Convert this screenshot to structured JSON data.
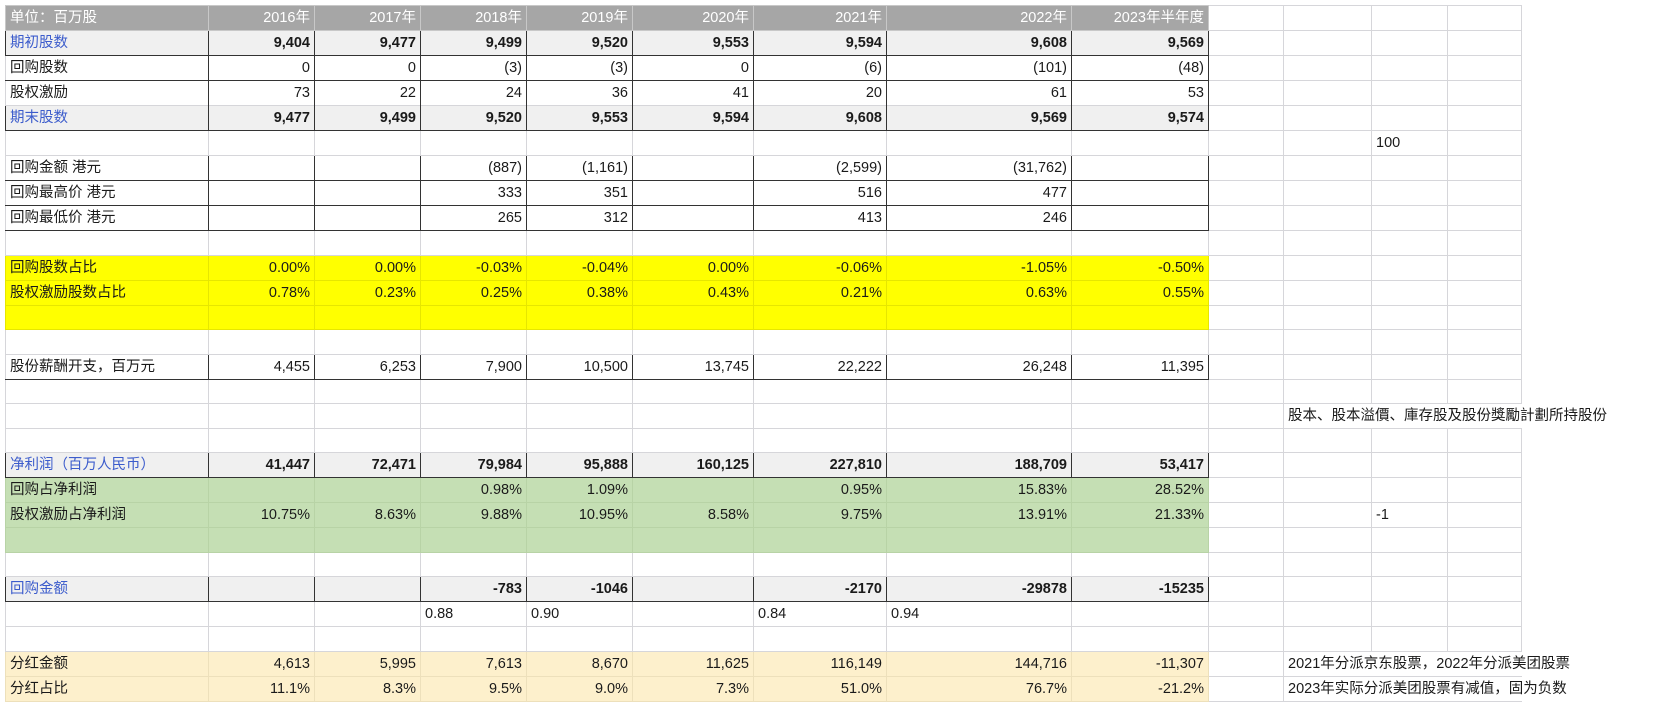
{
  "sheet": {
    "header": {
      "label": "单位：百万股",
      "values": [
        "2016年",
        "2017年",
        "2018年",
        "2019年",
        "2020年",
        "2021年",
        "2022年",
        "2023年半年度"
      ]
    },
    "rows": [
      {
        "label": "期初股数",
        "values": [
          "9,404",
          "9,477",
          "9,499",
          "9,520",
          "9,553",
          "9,594",
          "9,608",
          "9,569"
        ],
        "style": "bold"
      },
      {
        "label": "回购股数",
        "values": [
          "0",
          "0",
          "(3)",
          "(3)",
          "0",
          "(6)",
          "(101)",
          "(48)"
        ],
        "style": "boxed"
      },
      {
        "label": "股权激励",
        "values": [
          "73",
          "22",
          "24",
          "36",
          "41",
          "20",
          "61",
          "53"
        ],
        "style": "boxed dashed"
      },
      {
        "label": "期末股数",
        "values": [
          "9,477",
          "9,499",
          "9,520",
          "9,553",
          "9,594",
          "9,608",
          "9,569",
          "9,574"
        ],
        "style": "bold"
      },
      {
        "label": "",
        "values": [
          "",
          "",
          "",
          "",
          "",
          "",
          "",
          ""
        ],
        "style": "",
        "extra": {
          "L": "100"
        }
      },
      {
        "label": "回购金额 港元",
        "values": [
          "",
          "",
          "(887)",
          "(1,161)",
          "",
          "(2,599)",
          "(31,762)",
          ""
        ],
        "style": "boxed"
      },
      {
        "label": "回购最高价 港元",
        "values": [
          "",
          "",
          "333",
          "351",
          "",
          "516",
          "477",
          ""
        ],
        "style": "boxed"
      },
      {
        "label": "回购最低价 港元",
        "values": [
          "",
          "",
          "265",
          "312",
          "",
          "413",
          "246",
          ""
        ],
        "style": "boxed"
      },
      {
        "label": "",
        "values": [
          "",
          "",
          "",
          "",
          "",
          "",
          "",
          ""
        ],
        "style": ""
      },
      {
        "label": "回购股数占比",
        "values": [
          "0.00%",
          "0.00%",
          "-0.03%",
          "-0.04%",
          "0.00%",
          "-0.06%",
          "-1.05%",
          "-0.50%"
        ],
        "style": "yellow"
      },
      {
        "label": "股权激励股数占比",
        "values": [
          "0.78%",
          "0.23%",
          "0.25%",
          "0.38%",
          "0.43%",
          "0.21%",
          "0.63%",
          "0.55%"
        ],
        "style": "yellow"
      },
      {
        "label": "",
        "values": [
          "",
          "",
          "",
          "",
          "",
          "",
          "",
          ""
        ],
        "style": "yellow"
      },
      {
        "label": "",
        "values": [
          "",
          "",
          "",
          "",
          "",
          "",
          "",
          ""
        ],
        "style": ""
      },
      {
        "label": "股份薪酬开支，百万元",
        "values": [
          "4,455",
          "6,253",
          "7,900",
          "10,500",
          "13,745",
          "22,222",
          "26,248",
          "11,395"
        ],
        "style": "boxed"
      },
      {
        "label": "",
        "values": [
          "",
          "",
          "",
          "",
          "",
          "",
          "",
          ""
        ],
        "style": ""
      },
      {
        "label": "",
        "values": [
          "",
          "",
          "",
          "",
          "",
          "",
          "",
          ""
        ],
        "style": "",
        "extra": {
          "K": "股本、股本溢價、庫存股及股份獎勵計劃所持股份"
        }
      },
      {
        "label": "",
        "values": [
          "",
          "",
          "",
          "",
          "",
          "",
          "",
          ""
        ],
        "style": ""
      },
      {
        "label": "净利润（百万人民币）",
        "values": [
          "41,447",
          "72,471",
          "79,984",
          "95,888",
          "160,125",
          "227,810",
          "188,709",
          "53,417"
        ],
        "style": "bold"
      },
      {
        "label": "回购占净利润",
        "values": [
          "",
          "",
          "0.98%",
          "1.09%",
          "",
          "0.95%",
          "15.83%",
          "28.52%"
        ],
        "style": "green"
      },
      {
        "label": "股权激励占净利润",
        "values": [
          "10.75%",
          "8.63%",
          "9.88%",
          "10.95%",
          "8.58%",
          "9.75%",
          "13.91%",
          "21.33%"
        ],
        "style": "green",
        "extra": {
          "L": "-1"
        }
      },
      {
        "label": "",
        "values": [
          "",
          "",
          "",
          "",
          "",
          "",
          "",
          ""
        ],
        "style": "green"
      },
      {
        "label": "",
        "values": [
          "",
          "",
          "",
          "",
          "",
          "",
          "",
          ""
        ],
        "style": ""
      },
      {
        "label": "回购金额",
        "values": [
          "",
          "",
          "-783",
          "-1046",
          "",
          "-2170",
          "-29878",
          "-15235"
        ],
        "style": "bold"
      },
      {
        "label": "",
        "values": [
          "",
          "",
          "0.88",
          "0.90",
          "",
          "0.84",
          "0.94",
          ""
        ],
        "style": "leftvals"
      },
      {
        "label": "",
        "values": [
          "",
          "",
          "",
          "",
          "",
          "",
          "",
          ""
        ],
        "style": ""
      },
      {
        "label": "分红金额",
        "values": [
          "4,613",
          "5,995",
          "7,613",
          "8,670",
          "11,625",
          "116,149",
          "144,716",
          "-11,307"
        ],
        "style": "cream",
        "extra": {
          "K": "2021年分派京东股票，2022年分派美团股票"
        }
      },
      {
        "label": "分红占比",
        "values": [
          "11.1%",
          "8.3%",
          "9.5%",
          "9.0%",
          "7.3%",
          "51.0%",
          "76.7%",
          "-21.2%"
        ],
        "style": "cream",
        "extra": {
          "K": "2023年实际分派美团股票有减值，固为负数"
        }
      }
    ]
  }
}
